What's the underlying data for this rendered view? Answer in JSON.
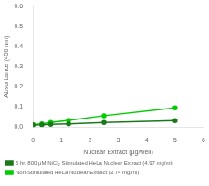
{
  "chart_data": {
    "type": "line",
    "xlabel": "Nuclear Extract (μg/well)",
    "ylabel": "Absorbance (450 nm)",
    "xlim": [
      0,
      6
    ],
    "ylim": [
      0,
      0.6
    ],
    "xticks": [
      0,
      1,
      2,
      3,
      4,
      5,
      6
    ],
    "yticks": [
      {
        "value": 0,
        "label": "0.0"
      },
      0.1,
      0.2,
      0.3,
      0.4,
      0.5,
      0.6
    ],
    "grid": false,
    "legend": "bottom",
    "series": [
      {
        "name": "6 hr. 800 μM NiCl₂ Stimulated HeLa Nuclear Extract (4.97 mg/ml)",
        "color": "#1a7a1a",
        "marker": "circle",
        "x": [
          0.0,
          0.3125,
          0.625,
          1.25,
          2.5,
          5.0
        ],
        "values": [
          0.01,
          0.011,
          0.013,
          0.016,
          0.022,
          0.032
        ]
      },
      {
        "name": "Non-Stimulated HeLa Nuclear Extract (3.74 mg/ml)",
        "color": "#00cc00",
        "marker": "circle",
        "x": [
          0.0,
          0.3125,
          0.625,
          1.25,
          2.5,
          5.0
        ],
        "values": [
          0.012,
          0.016,
          0.022,
          0.033,
          0.056,
          0.095
        ]
      }
    ]
  }
}
